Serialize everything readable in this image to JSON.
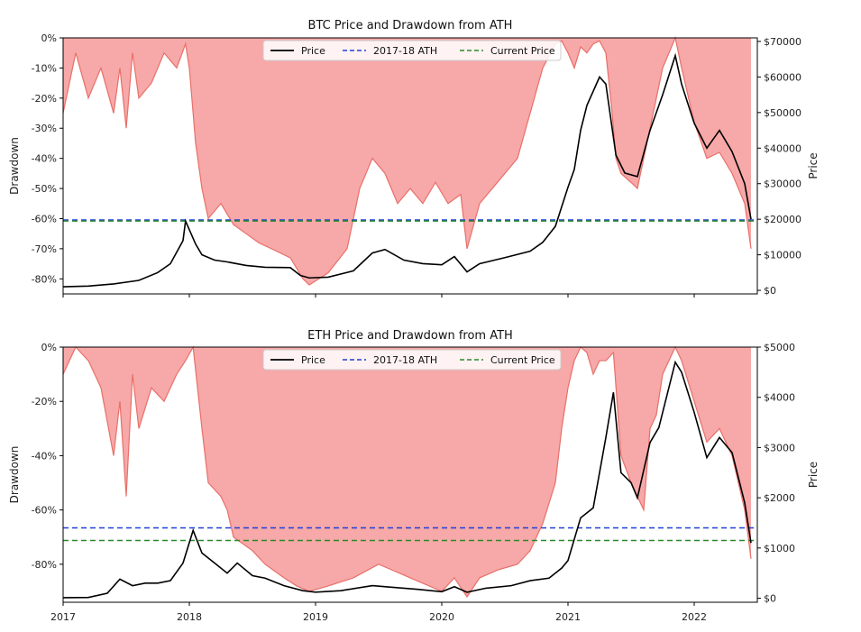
{
  "chart_data": [
    {
      "type": "line",
      "title": "BTC Price and Drawdown from ATH",
      "ylabel_left": "Drawdown",
      "ylabel_right": "Price",
      "x_range": [
        2017.0,
        2022.5
      ],
      "x_ticks": [
        2017,
        2018,
        2019,
        2020,
        2021,
        2022
      ],
      "x_tick_labels": [
        "",
        "",
        "",
        "",
        "",
        ""
      ],
      "drawdown_ylim": [
        -85,
        0
      ],
      "drawdown_ticks": [
        0,
        -10,
        -20,
        -30,
        -40,
        -50,
        -60,
        -70,
        -80
      ],
      "drawdown_tick_labels": [
        "0%",
        "-10%",
        "-20%",
        "-30%",
        "-40%",
        "-50%",
        "-60%",
        "-70%",
        "-80%"
      ],
      "price_ylim": [
        -1000,
        71000
      ],
      "price_ticks": [
        0,
        10000,
        20000,
        30000,
        40000,
        50000,
        60000,
        70000
      ],
      "price_tick_labels": [
        "$0",
        "$10000",
        "$20000",
        "$30000",
        "$40000",
        "$50000",
        "$60000",
        "$70000"
      ],
      "legend": {
        "placement": "top-center",
        "entries": [
          "Price",
          "2017-18 ATH",
          "Current Price"
        ]
      },
      "series": [
        {
          "name": "Price",
          "color": "#000000",
          "x": [
            2017.0,
            2017.2,
            2017.4,
            2017.6,
            2017.75,
            2017.85,
            2017.95,
            2017.97,
            2018.05,
            2018.1,
            2018.2,
            2018.3,
            2018.45,
            2018.6,
            2018.8,
            2018.88,
            2018.95,
            2019.1,
            2019.3,
            2019.45,
            2019.55,
            2019.7,
            2019.85,
            2020.0,
            2020.1,
            2020.2,
            2020.3,
            2020.5,
            2020.7,
            2020.8,
            2020.9,
            2021.0,
            2021.05,
            2021.1,
            2021.15,
            2021.25,
            2021.3,
            2021.38,
            2021.45,
            2021.55,
            2021.65,
            2021.75,
            2021.85,
            2021.9,
            2022.0,
            2022.1,
            2022.2,
            2022.3,
            2022.4,
            2022.45
          ],
          "y": [
            1000,
            1200,
            1800,
            2800,
            5000,
            7500,
            14000,
            19500,
            13000,
            10000,
            8500,
            8000,
            7000,
            6500,
            6400,
            4200,
            3500,
            3700,
            5500,
            10500,
            11500,
            8500,
            7500,
            7200,
            9500,
            5200,
            7500,
            9200,
            11000,
            13500,
            18000,
            29000,
            34000,
            45000,
            52000,
            60000,
            58000,
            38000,
            33000,
            32000,
            45000,
            55000,
            66000,
            58000,
            47000,
            40000,
            45000,
            39000,
            30000,
            20000
          ]
        },
        {
          "name": "2017-18 ATH",
          "color": "#1f3fd6",
          "style": "dashed",
          "y": 19800
        },
        {
          "name": "Current Price",
          "color": "#2a8a2a",
          "style": "dashed",
          "y": 19500
        },
        {
          "name": "Drawdown",
          "color": "#f08080",
          "x": [
            2017.0,
            2017.05,
            2017.1,
            2017.2,
            2017.3,
            2017.4,
            2017.45,
            2017.5,
            2017.55,
            2017.6,
            2017.7,
            2017.8,
            2017.9,
            2017.97,
            2018.0,
            2018.05,
            2018.1,
            2018.15,
            2018.25,
            2018.35,
            2018.45,
            2018.55,
            2018.65,
            2018.8,
            2018.9,
            2018.95,
            2019.1,
            2019.25,
            2019.35,
            2019.45,
            2019.55,
            2019.65,
            2019.75,
            2019.85,
            2019.95,
            2020.05,
            2020.15,
            2020.2,
            2020.3,
            2020.4,
            2020.5,
            2020.6,
            2020.7,
            2020.8,
            2020.9,
            2020.95,
            2021.0,
            2021.05,
            2021.1,
            2021.15,
            2021.2,
            2021.25,
            2021.3,
            2021.35,
            2021.38,
            2021.42,
            2021.5,
            2021.55,
            2021.6,
            2021.65,
            2021.7,
            2021.75,
            2021.8,
            2021.85,
            2021.9,
            2022.0,
            2022.1,
            2022.2,
            2022.3,
            2022.4,
            2022.45
          ],
          "y": [
            -25,
            -15,
            -5,
            -20,
            -10,
            -25,
            -10,
            -30,
            -5,
            -20,
            -15,
            -5,
            -10,
            -2,
            -10,
            -35,
            -50,
            -60,
            -55,
            -62,
            -65,
            -68,
            -70,
            -73,
            -80,
            -82,
            -78,
            -70,
            -50,
            -40,
            -45,
            -55,
            -50,
            -55,
            -48,
            -55,
            -52,
            -70,
            -55,
            -50,
            -45,
            -40,
            -25,
            -10,
            -2,
            -1,
            -5,
            -10,
            -3,
            -5,
            -2,
            -1,
            -5,
            -25,
            -40,
            -45,
            -48,
            -50,
            -40,
            -30,
            -20,
            -10,
            -5,
            0,
            -10,
            -28,
            -40,
            -38,
            -45,
            -55,
            -70
          ]
        }
      ]
    },
    {
      "type": "line",
      "title": "ETH Price and Drawdown from ATH",
      "ylabel_left": "Drawdown",
      "ylabel_right": "Price",
      "x_range": [
        2017.0,
        2022.5
      ],
      "x_ticks": [
        2017,
        2018,
        2019,
        2020,
        2021,
        2022
      ],
      "x_tick_labels": [
        "2017",
        "2018",
        "2019",
        "2020",
        "2021",
        "2022"
      ],
      "drawdown_ylim": [
        -94,
        0
      ],
      "drawdown_ticks": [
        0,
        -20,
        -40,
        -60,
        -80
      ],
      "drawdown_tick_labels": [
        "0%",
        "-20%",
        "-40%",
        "-60%",
        "-80%"
      ],
      "price_ylim": [
        -80,
        5000
      ],
      "price_ticks": [
        0,
        1000,
        2000,
        3000,
        4000,
        5000
      ],
      "price_tick_labels": [
        "$0",
        "$1000",
        "$2000",
        "$3000",
        "$4000",
        "$5000"
      ],
      "legend": {
        "placement": "top-center",
        "entries": [
          "Price",
          "2017-18 ATH",
          "Current Price"
        ]
      },
      "series": [
        {
          "name": "Price",
          "color": "#000000",
          "x": [
            2017.0,
            2017.2,
            2017.35,
            2017.45,
            2017.55,
            2017.65,
            2017.75,
            2017.85,
            2017.95,
            2018.03,
            2018.1,
            2018.2,
            2018.3,
            2018.38,
            2018.5,
            2018.6,
            2018.75,
            2018.9,
            2019.0,
            2019.2,
            2019.45,
            2019.6,
            2019.8,
            2020.0,
            2020.1,
            2020.2,
            2020.35,
            2020.55,
            2020.7,
            2020.85,
            2020.95,
            2021.0,
            2021.1,
            2021.2,
            2021.3,
            2021.36,
            2021.42,
            2021.5,
            2021.55,
            2021.65,
            2021.72,
            2021.8,
            2021.85,
            2021.9,
            2022.0,
            2022.1,
            2022.2,
            2022.3,
            2022.4,
            2022.45
          ],
          "y": [
            10,
            15,
            100,
            380,
            250,
            300,
            300,
            350,
            700,
            1350,
            900,
            700,
            500,
            700,
            450,
            400,
            250,
            150,
            120,
            150,
            250,
            220,
            180,
            130,
            230,
            120,
            200,
            250,
            350,
            400,
            600,
            750,
            1600,
            1800,
            3200,
            4100,
            2500,
            2300,
            2000,
            3100,
            3400,
            4200,
            4700,
            4500,
            3700,
            2800,
            3200,
            2900,
            1900,
            1100
          ]
        },
        {
          "name": "2017-18 ATH",
          "color": "#1f3fd6",
          "style": "dashed",
          "y": 1400
        },
        {
          "name": "Current Price",
          "color": "#2a8a2a",
          "style": "dashed",
          "y": 1150
        },
        {
          "name": "Drawdown",
          "color": "#f08080",
          "x": [
            2017.0,
            2017.05,
            2017.1,
            2017.2,
            2017.3,
            2017.4,
            2017.45,
            2017.5,
            2017.55,
            2017.6,
            2017.7,
            2017.8,
            2017.9,
            2017.97,
            2018.03,
            2018.1,
            2018.15,
            2018.25,
            2018.3,
            2018.35,
            2018.5,
            2018.6,
            2018.75,
            2018.85,
            2018.95,
            2019.1,
            2019.3,
            2019.5,
            2019.6,
            2019.75,
            2019.9,
            2020.0,
            2020.1,
            2020.2,
            2020.3,
            2020.45,
            2020.6,
            2020.7,
            2020.8,
            2020.9,
            2020.95,
            2021.0,
            2021.05,
            2021.1,
            2021.15,
            2021.2,
            2021.25,
            2021.3,
            2021.36,
            2021.42,
            2021.5,
            2021.55,
            2021.6,
            2021.65,
            2021.7,
            2021.75,
            2021.8,
            2021.85,
            2021.9,
            2022.0,
            2022.1,
            2022.2,
            2022.3,
            2022.4,
            2022.45
          ],
          "y": [
            -10,
            -5,
            0,
            -5,
            -15,
            -40,
            -20,
            -55,
            -10,
            -30,
            -15,
            -20,
            -10,
            -5,
            0,
            -30,
            -50,
            -55,
            -60,
            -70,
            -75,
            -80,
            -85,
            -88,
            -90,
            -88,
            -85,
            -80,
            -82,
            -85,
            -88,
            -90,
            -85,
            -92,
            -85,
            -82,
            -80,
            -75,
            -65,
            -50,
            -30,
            -15,
            -5,
            0,
            -2,
            -10,
            -5,
            -5,
            -2,
            -40,
            -50,
            -55,
            -60,
            -30,
            -25,
            -10,
            -5,
            0,
            -5,
            -20,
            -35,
            -30,
            -40,
            -60,
            -78
          ]
        }
      ]
    }
  ]
}
